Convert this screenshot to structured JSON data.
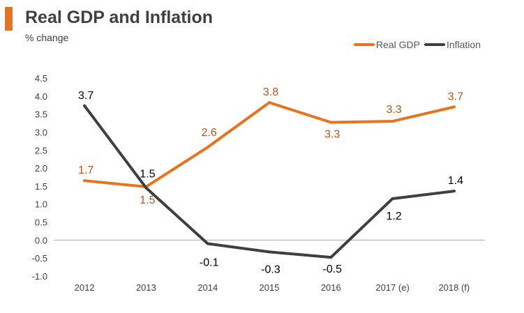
{
  "header": {
    "title": "Real GDP and Inflation",
    "subtitle": "% change"
  },
  "colors": {
    "accent": "#e8731e",
    "gdp": "#e8731e",
    "inflation": "#3f3f3f",
    "gdp_label": "#b3561a",
    "axis": "#a6a6a6"
  },
  "chart_data": {
    "type": "line",
    "title": "Real GDP and Inflation",
    "subtitle": "% change",
    "categories": [
      "2012",
      "2013",
      "2014",
      "2015",
      "2016",
      "2017 (e)",
      "2018 (f)"
    ],
    "yticks": [
      "4.5",
      "4.0",
      "3.5",
      "3.0",
      "2.5",
      "2.0",
      "1.5",
      "1.0",
      "0.5",
      "0.0",
      "-0.5",
      "-1.0"
    ],
    "ylim": [
      -1.0,
      4.5
    ],
    "grid": false,
    "legend_position": "top-right",
    "series": [
      {
        "name": "Real GDP",
        "values": [
          1.65,
          1.48,
          2.58,
          3.82,
          3.27,
          3.3,
          3.7
        ],
        "labels": [
          "1.7",
          "1.5",
          "2.6",
          "3.8",
          "3.3",
          "3.3",
          "3.7"
        ]
      },
      {
        "name": "Inflation",
        "values": [
          3.73,
          1.45,
          -0.1,
          -0.33,
          -0.48,
          1.15,
          1.36
        ],
        "labels": [
          "3.7",
          "1.5",
          "-0.1",
          "-0.3",
          "-0.5",
          "1.2",
          "1.4"
        ]
      }
    ]
  }
}
